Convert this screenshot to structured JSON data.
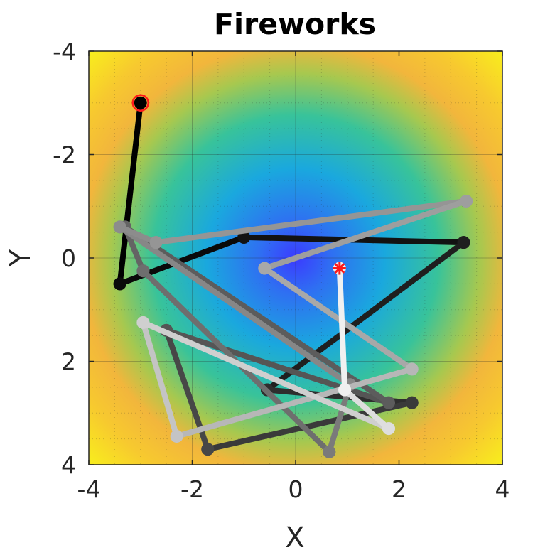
{
  "chart_data": {
    "type": "line",
    "title": "Fireworks",
    "xlabel": "X",
    "ylabel": "Y",
    "xlim": [
      -4,
      4
    ],
    "ylim": [
      -4,
      4
    ],
    "y_axis_direction": "downward (reversed)",
    "xticks": [
      -4,
      -2,
      0,
      2,
      4
    ],
    "yticks": [
      -4,
      -2,
      0,
      2,
      4
    ],
    "xtick_labels": [
      "-4",
      "-2",
      "0",
      "2",
      "4"
    ],
    "ytick_labels": [
      "-4",
      "-2",
      "0",
      "2",
      "4"
    ],
    "grid": true,
    "background": "heatmap of distance from origin (blue at center, cyan/green, orange, yellow at corners)",
    "start_point": {
      "x": -3.0,
      "y": -3.0,
      "marker": "black dot with red ring"
    },
    "end_point": {
      "x": 0.85,
      "y": 0.2,
      "marker": "red asterisk"
    },
    "series": [
      {
        "color": "#000000",
        "points": [
          [
            -3.0,
            -3.0
          ],
          [
            -3.4,
            0.5
          ]
        ]
      },
      {
        "color": "#0a0a0a",
        "points": [
          [
            -3.4,
            0.5
          ],
          [
            -1.0,
            -0.4
          ]
        ]
      },
      {
        "color": "#121212",
        "points": [
          [
            -1.0,
            -0.4
          ],
          [
            3.25,
            -0.3
          ]
        ]
      },
      {
        "color": "#1f1f1f",
        "points": [
          [
            3.25,
            -0.3
          ],
          [
            -0.55,
            2.55
          ]
        ]
      },
      {
        "color": "#2e2e2e",
        "points": [
          [
            -0.55,
            2.55
          ],
          [
            2.25,
            2.8
          ]
        ]
      },
      {
        "color": "#3a3a3a",
        "points": [
          [
            2.25,
            2.8
          ],
          [
            -1.7,
            3.7
          ]
        ]
      },
      {
        "color": "#474747",
        "points": [
          [
            -1.7,
            3.7
          ],
          [
            -2.5,
            1.4
          ]
        ]
      },
      {
        "color": "#555555",
        "points": [
          [
            -2.5,
            1.4
          ],
          [
            1.8,
            2.8
          ]
        ]
      },
      {
        "color": "#5c5c5c",
        "points": [
          [
            1.8,
            2.8
          ],
          [
            -3.3,
            -0.6
          ]
        ]
      },
      {
        "color": "#646464",
        "points": [
          [
            -3.3,
            -0.6
          ],
          [
            -2.95,
            0.25
          ]
        ]
      },
      {
        "color": "#6e6e6e",
        "points": [
          [
            -2.95,
            0.25
          ],
          [
            0.65,
            3.75
          ]
        ]
      },
      {
        "color": "#7a7a7a",
        "points": [
          [
            0.65,
            3.75
          ],
          [
            1.05,
            2.45
          ]
        ]
      },
      {
        "color": "#878787",
        "points": [
          [
            1.05,
            2.45
          ],
          [
            -3.4,
            -0.6
          ]
        ]
      },
      {
        "color": "#8c8c8c",
        "points": [
          [
            -3.4,
            -0.6
          ],
          [
            -2.7,
            -0.3
          ]
        ]
      },
      {
        "color": "#959595",
        "points": [
          [
            -2.7,
            -0.3
          ],
          [
            3.3,
            -1.1
          ]
        ]
      },
      {
        "color": "#9e9e9e",
        "points": [
          [
            3.3,
            -1.1
          ],
          [
            -0.6,
            0.2
          ]
        ]
      },
      {
        "color": "#a8a8a8",
        "points": [
          [
            -0.6,
            0.2
          ],
          [
            2.25,
            2.15
          ]
        ]
      },
      {
        "color": "#b7b7b7",
        "points": [
          [
            2.25,
            2.15
          ],
          [
            -2.3,
            3.45
          ]
        ]
      },
      {
        "color": "#c4c4c4",
        "points": [
          [
            -2.3,
            3.45
          ],
          [
            -2.95,
            1.25
          ]
        ]
      },
      {
        "color": "#cfcfcf",
        "points": [
          [
            -2.95,
            1.25
          ],
          [
            1.8,
            3.3
          ]
        ]
      },
      {
        "color": "#dedede",
        "points": [
          [
            1.8,
            3.3
          ],
          [
            0.95,
            2.55
          ]
        ]
      },
      {
        "color": "#f0f0f0",
        "points": [
          [
            0.95,
            2.55
          ],
          [
            0.85,
            0.2
          ]
        ]
      }
    ]
  }
}
